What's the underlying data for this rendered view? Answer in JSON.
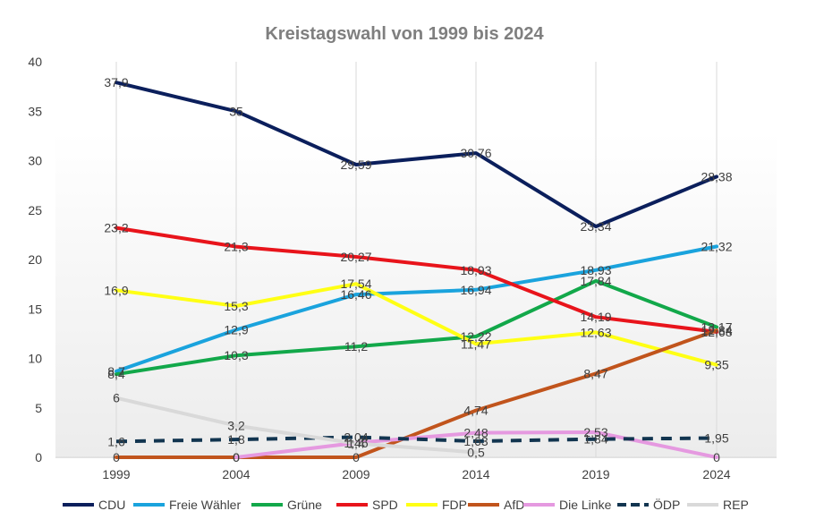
{
  "chart_data": {
    "type": "line",
    "title": "Kreistagswahl von 1999 bis 2024",
    "xlabel": "",
    "ylabel": "",
    "categories": [
      "1999",
      "2004",
      "2009",
      "2014",
      "2019",
      "2024"
    ],
    "ylim": [
      0,
      40
    ],
    "yticks": [
      "0",
      "5",
      "10",
      "15",
      "20",
      "25",
      "30",
      "35",
      "40"
    ],
    "grid": "vertical",
    "legend_position": "bottom",
    "series": [
      {
        "name": "CDU",
        "color": "#0b1f5c",
        "dash": false,
        "values": [
          37.9,
          35,
          29.59,
          30.76,
          23.34,
          28.38
        ],
        "labels": [
          "37,9",
          "35",
          "29,59",
          "30,76",
          "23,34",
          "28,38"
        ]
      },
      {
        "name": "Freie Wähler",
        "color": "#1aa3dd",
        "dash": false,
        "values": [
          8.7,
          12.9,
          16.46,
          16.94,
          18.93,
          21.32
        ],
        "labels": [
          "8,7",
          "12,9",
          "16,46",
          "16,94",
          "18,93",
          "21,32"
        ]
      },
      {
        "name": "Grüne",
        "color": "#12a84a",
        "dash": false,
        "values": [
          8.4,
          10.3,
          11.2,
          12.22,
          17.84,
          13.17
        ],
        "labels": [
          "8,4",
          "10,3",
          "11,2",
          "12,22",
          "17,84",
          "13,17"
        ]
      },
      {
        "name": "SPD",
        "color": "#e8141b",
        "dash": false,
        "values": [
          23.2,
          21.3,
          20.27,
          18.93,
          14.19,
          12.68
        ],
        "labels": [
          "23,2",
          "21,3",
          "20,27",
          "18,93",
          "14,19",
          "12,68"
        ]
      },
      {
        "name": "FDP",
        "color": "#ffff14",
        "dash": false,
        "values": [
          16.9,
          15.3,
          17.54,
          11.47,
          12.63,
          9.35
        ],
        "labels": [
          "16,9",
          "15,3",
          "17,54",
          "11,47",
          "12,63",
          "9,35"
        ]
      },
      {
        "name": "AfD",
        "color": "#c1541c",
        "dash": false,
        "values": [
          0,
          0,
          0,
          4.74,
          8.47,
          12.84
        ],
        "labels": [
          "0",
          "0",
          "0",
          "4,74",
          "8,47",
          "12,84"
        ]
      },
      {
        "name": "Die Linke",
        "color": "#e599e0",
        "dash": false,
        "values": [
          null,
          0,
          1.46,
          2.48,
          2.53,
          0
        ],
        "labels": [
          "",
          "0",
          "1,46",
          "2,48",
          "2,53",
          "0"
        ]
      },
      {
        "name": "ÖDP",
        "color": "#123550",
        "dash": true,
        "values": [
          1.6,
          1.8,
          2.04,
          1.63,
          1.84,
          1.95
        ],
        "labels": [
          "1,6",
          "1,8",
          "2,04",
          "1,63",
          "1,84",
          "1,95"
        ]
      },
      {
        "name": "REP",
        "color": "#d9d9d9",
        "dash": false,
        "values": [
          6,
          3.2,
          1.4,
          0.5,
          null,
          null
        ],
        "labels": [
          "6",
          "3,2",
          "1,4",
          "0,5",
          "",
          ""
        ]
      }
    ]
  }
}
